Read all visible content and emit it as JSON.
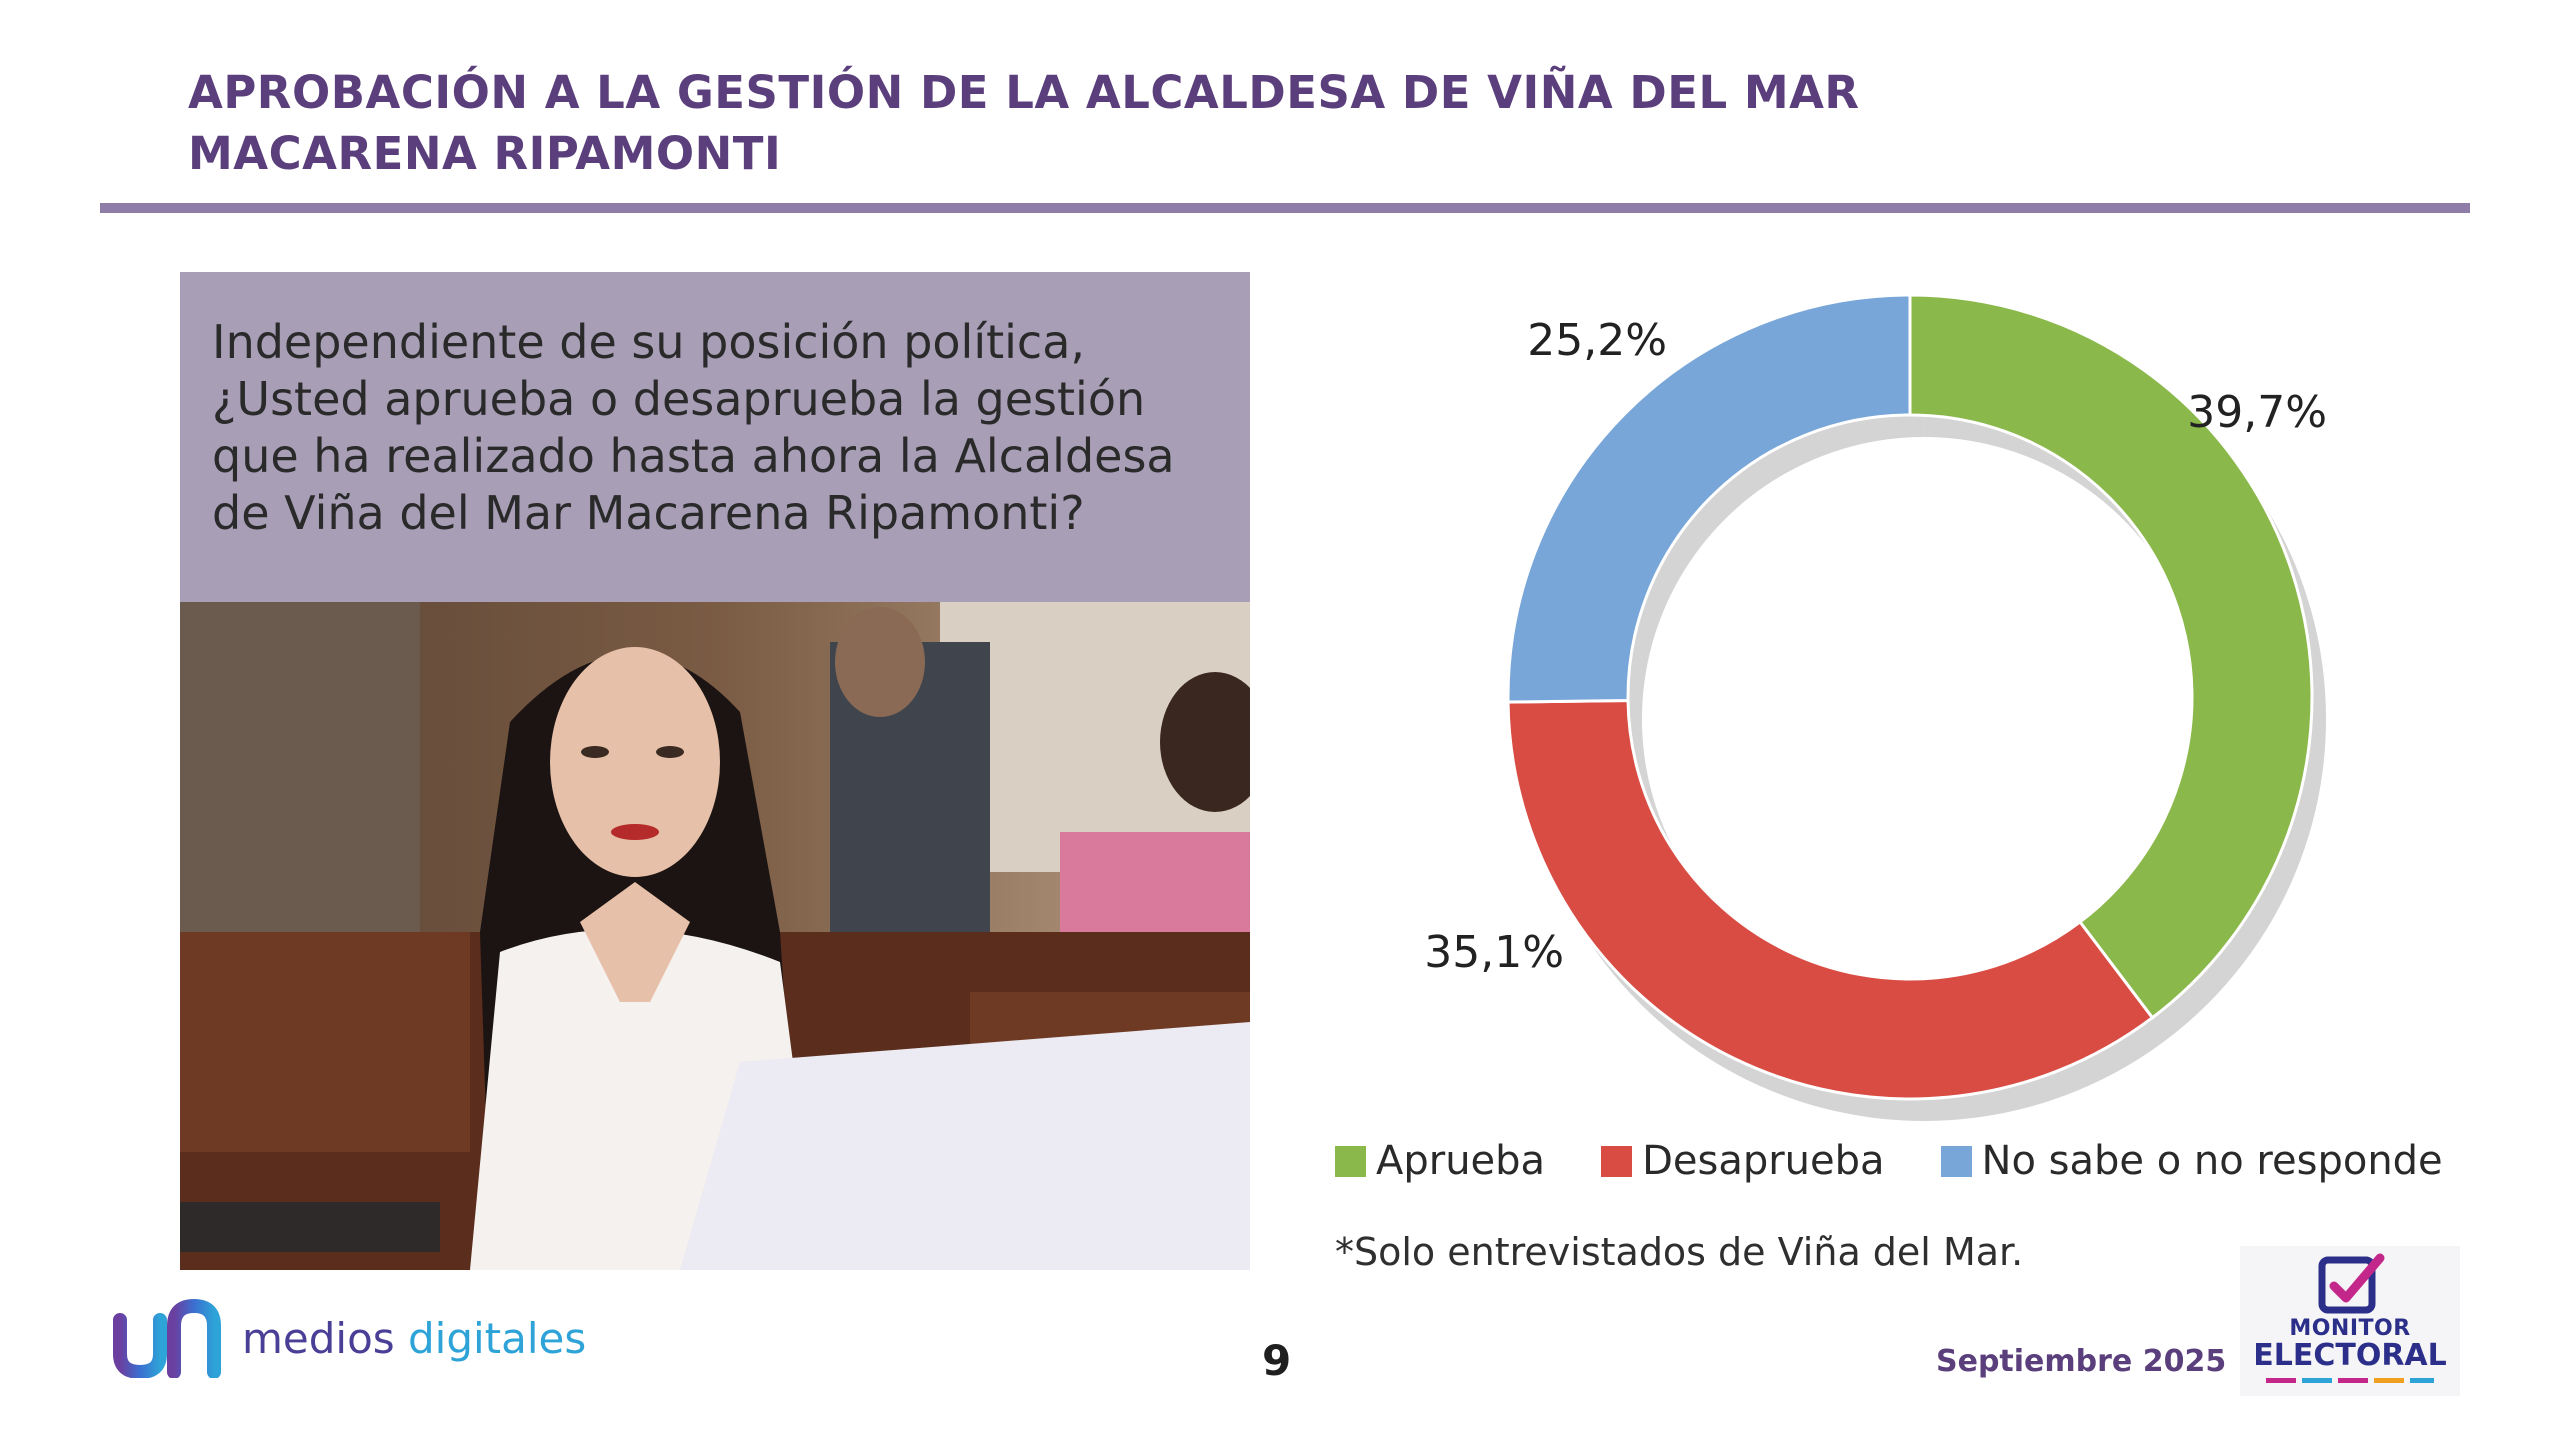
{
  "header": {
    "title_line1": "APROBACIÓN A LA GESTIÓN DE LA ALCALDESA DE VIÑA DEL MAR",
    "title_line2": "MACARENA RIPAMONTI"
  },
  "question": "Independiente de su posición política, ¿Usted aprueba o desaprueba la gestión que ha realizado hasta ahora la Alcaldesa de Viña del Mar Macarena Ripamonti?",
  "chart_data": {
    "type": "pie",
    "donut": true,
    "categories": [
      "Aprueba",
      "Desaprueba",
      "No sabe o no responde"
    ],
    "values": [
      39.7,
      35.1,
      25.2
    ],
    "labels": [
      "39,7%",
      "35,1%",
      "25,2%"
    ],
    "colors": [
      "#8ab84a",
      "#d94c43",
      "#78a6d8"
    ],
    "legend_position": "bottom"
  },
  "footnote": "*Solo entrevistados de Viña del Mar.",
  "footer": {
    "brand_part1": "medios ",
    "brand_part2": "digitales",
    "page_number": "9",
    "date": "Septiembre 2025",
    "logo_line1": "MONITOR",
    "logo_line2": "ELECTORAL"
  }
}
